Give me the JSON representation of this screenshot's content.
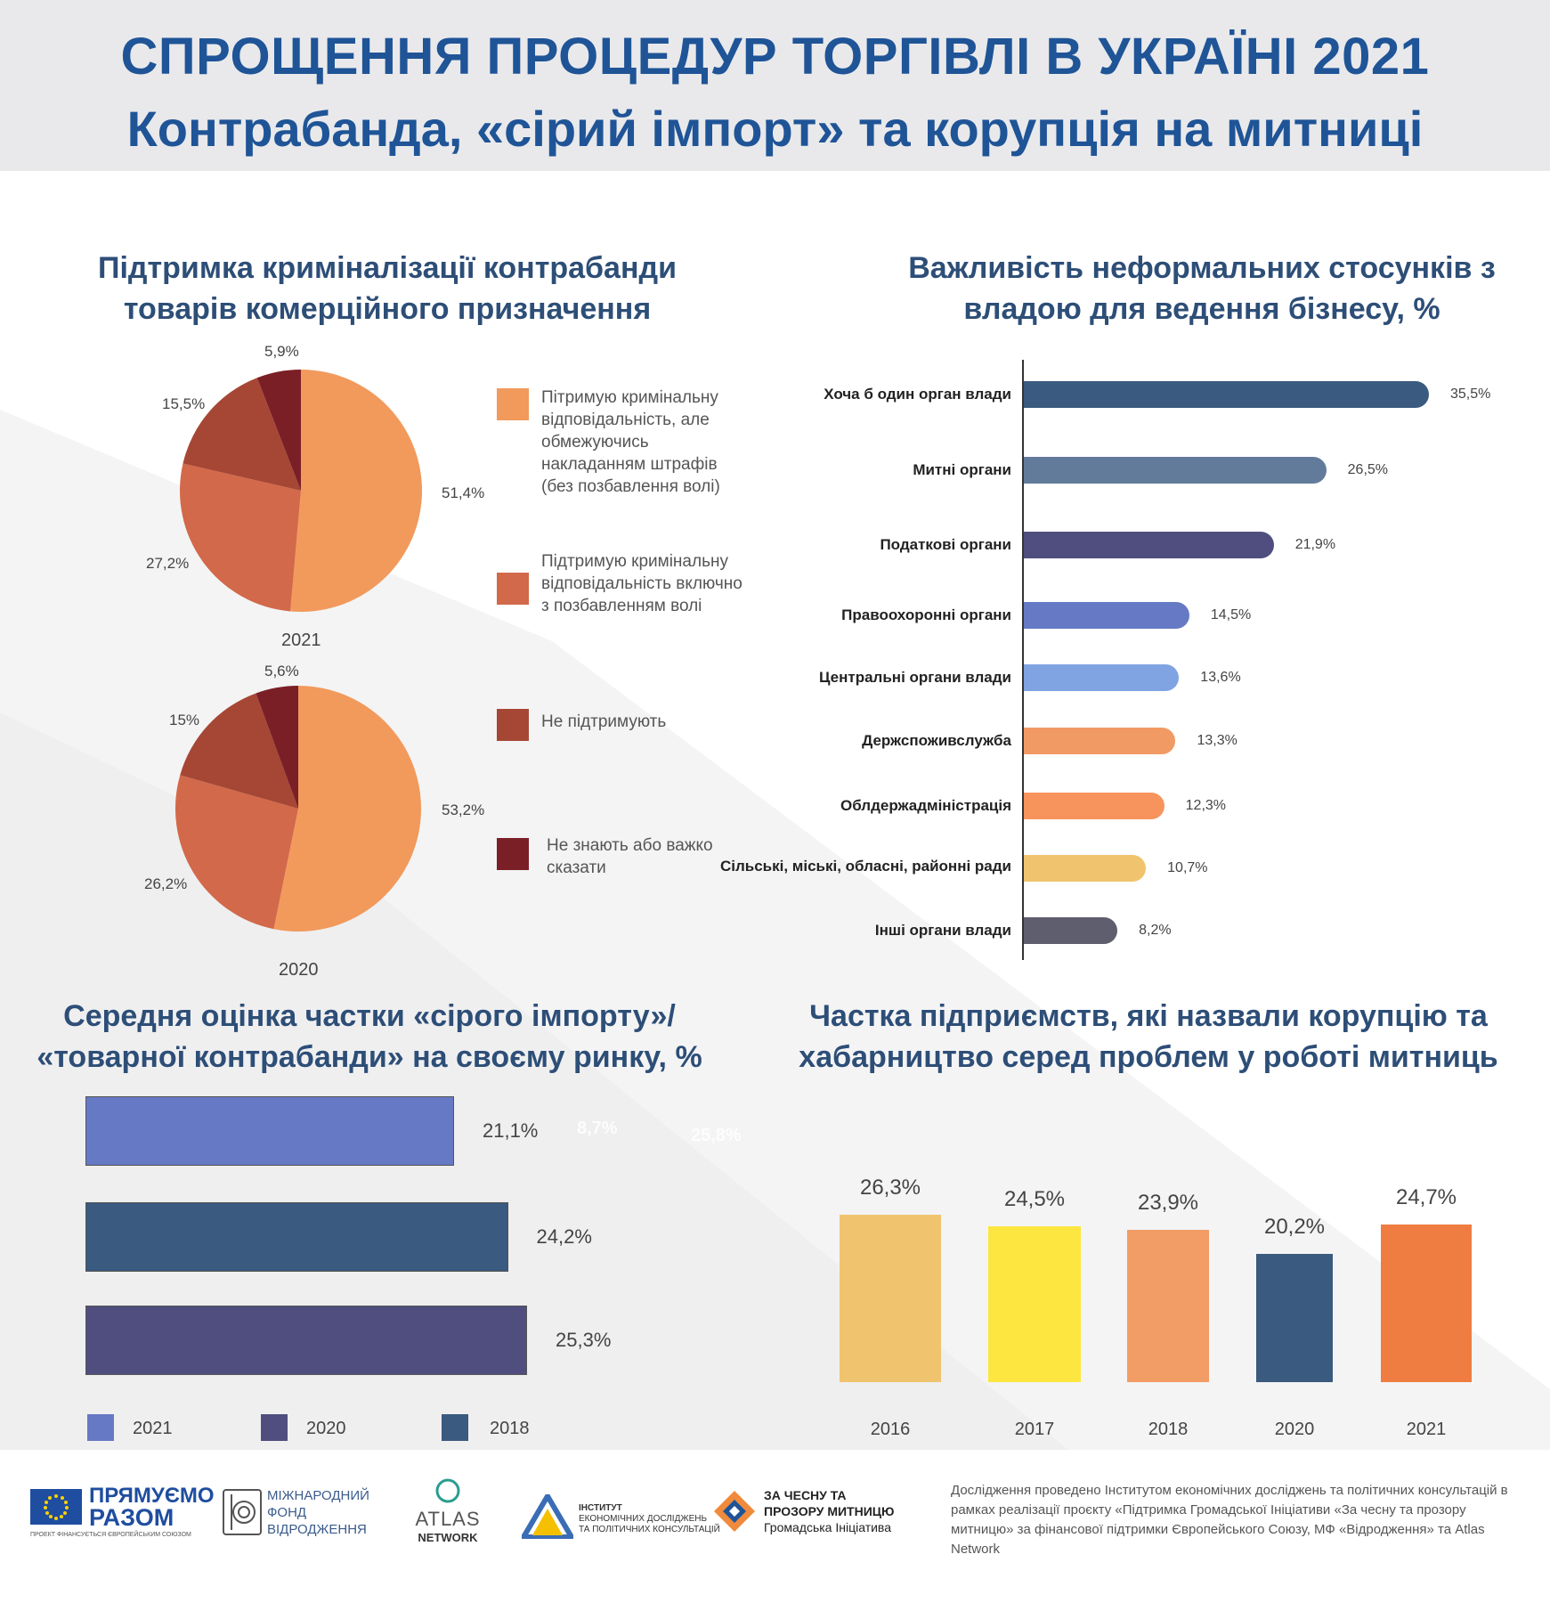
{
  "header": {
    "title_line1": "СПРОЩЕННЯ ПРОЦЕДУР ТОРГІВЛІ В УКРАЇНІ 2021",
    "title_line2": "Контрабанда, «сірий імпорт» та корупція на митниці"
  },
  "colors": {
    "title_blue": "#1f5497",
    "section_title": "#2d4e77",
    "pie": [
      "#f19a5c",
      "#d2694a",
      "#a64735",
      "#7b1f27"
    ]
  },
  "pie_section": {
    "title_line1": "Підтримка криміналізації контрабанди",
    "title_line2": "товарів комерційного призначення",
    "legend": [
      {
        "label": "Пітримую кримінальну відповідальність, але обмежуючись накладанням штрафів (без позбавлення волі)",
        "color": "#f19a5c"
      },
      {
        "label": "Підтримую кримінальну відповідальність включно з позбавленням волі",
        "color": "#d2694a"
      },
      {
        "label": "Не підтримують",
        "color": "#a64735"
      },
      {
        "label": "Не знають  або важко сказати",
        "color": "#7b1f27"
      }
    ]
  },
  "bar_section": {
    "title_line1": "Важливість неформальних стосунків з",
    "title_line2": "владою для ведення бізнесу, %"
  },
  "gray_section": {
    "title_line1": "Середня оцінка частки «сірого імпорту»/",
    "title_line2": "«товарної контрабанди» на своєму ринку, %",
    "ghost_values": [
      "8,7%",
      "25,8%"
    ]
  },
  "corruption_section": {
    "title_line1": "Частка підприємств, які назвали корупцію та",
    "title_line2": "хабарництво серед проблем у роботі митниць"
  },
  "chart_data": [
    {
      "type": "pie",
      "title": "2021",
      "labels": [
        "Пітримую кримінальну відповідальність, але обмежуючись накладанням штрафів (без позбавлення волі)",
        "Підтримую кримінальну відповідальність включно з позбавленням волі",
        "Не підтримують",
        "Не знають  або важко сказати"
      ],
      "values": [
        51.4,
        27.2,
        15.5,
        5.9
      ],
      "value_labels": [
        "51,4%",
        "27,2%",
        "15,5%",
        "5,9%"
      ]
    },
    {
      "type": "pie",
      "title": "2020",
      "labels": [
        "Пітримую кримінальну відповідальність, але обмежуючись накладанням штрафів (без позбавлення волі)",
        "Підтримую кримінальну відповідальність включно з позбавленням волі",
        "Не підтримують",
        "Не знають  або важко сказати"
      ],
      "values": [
        53.2,
        26.2,
        15,
        5.6
      ],
      "value_labels": [
        "53,2%",
        "26,2%",
        "15%",
        "5,6%"
      ]
    },
    {
      "type": "bar",
      "orientation": "horizontal",
      "title": "Важливість неформальних стосунків з владою для ведення бізнесу, %",
      "categories": [
        "Хоча б один орган влади",
        "Митні органи",
        "Податкові органи",
        "Правоохоронні органи",
        "Центральні органи влади",
        "Держспоживслужба",
        "Облдержадміністрація",
        "Сільські, міські, обласні, районні ради",
        "Інші органи влади"
      ],
      "values": [
        35.5,
        26.5,
        21.9,
        14.5,
        13.6,
        13.3,
        12.3,
        10.7,
        8.2
      ],
      "value_labels": [
        "35,5%",
        "26,5%",
        "21,9%",
        "14,5%",
        "13,6%",
        "13,3%",
        "12,3%",
        "10,7%",
        "8,2%"
      ],
      "colors": [
        "#3a5a7f",
        "#637b9b",
        "#4f4e7e",
        "#6679c4",
        "#80a4e2",
        "#f19a64",
        "#f7935c",
        "#f0c46f",
        "#5e5e6e"
      ]
    },
    {
      "type": "bar",
      "orientation": "horizontal",
      "title": "Середня оцінка частки «сірого імпорту»/ «товарної контрабанди» на своєму ринку, %",
      "categories": [
        "2021",
        "2018",
        "2020"
      ],
      "values": [
        21.1,
        24.2,
        25.3
      ],
      "value_labels": [
        "21,1%",
        "24,2%",
        "25,3%"
      ],
      "colors": [
        "#6679c4",
        "#3a5a7f",
        "#4f4e7e"
      ],
      "legend": [
        {
          "label": "2021",
          "color": "#6679c4"
        },
        {
          "label": "2020",
          "color": "#4f4e7e"
        },
        {
          "label": "2018",
          "color": "#3a5a7f"
        }
      ]
    },
    {
      "type": "bar",
      "orientation": "vertical",
      "title": "Частка підприємств, які назвали корупцію та хабарництво серед проблем у роботі митниць",
      "categories": [
        "2016",
        "2017",
        "2018",
        "2020",
        "2021"
      ],
      "values": [
        26.3,
        24.5,
        23.9,
        20.2,
        24.7
      ],
      "value_labels": [
        "26,3%",
        "24,5%",
        "23,9%",
        "20,2%",
        "24,7%"
      ],
      "colors": [
        "#f0c46f",
        "#fde63f",
        "#f29c66",
        "#3a5a7f",
        "#ef7d41"
      ]
    }
  ],
  "footer": {
    "logo1_line1": "ПРЯМУЄМО",
    "logo1_line2": "РАЗОМ",
    "logo1_sub": "ПРОЕКТ ФІНАНСУЄТЬСЯ ЄВРОПЕЙСЬКИМ СОЮЗОМ",
    "logo2_line1": "МІЖНАРОДНИЙ",
    "logo2_line2": "ФОНД",
    "logo2_line3": "ВІДРОДЖЕННЯ",
    "logo3_line1": "ATLAS",
    "logo3_line2": "NETWORK",
    "logo4_line1": "ІНСТИТУТ",
    "logo4_line2": "ЕКОНОМІЧНИХ ДОСЛІДЖЕНЬ",
    "logo4_line3": "ТА ПОЛІТИЧНИХ КОНСУЛЬТАЦІЙ",
    "logo5_line1": "ЗА ЧЕСНУ ТА",
    "logo5_line2": "ПРОЗОРУ МИТНИЦЮ",
    "logo5_line3": "Громадська Ініціатива",
    "note": "Дослідження проведено Інститутом економічних досліджень та політичних консультацій в рамках реалізації проєкту «Підтримка Громадської Ініціативи «За чесну та прозору митницю» за фінансової підтримки Європейського Союзу, МФ «Відродження» та Atlas Network"
  }
}
